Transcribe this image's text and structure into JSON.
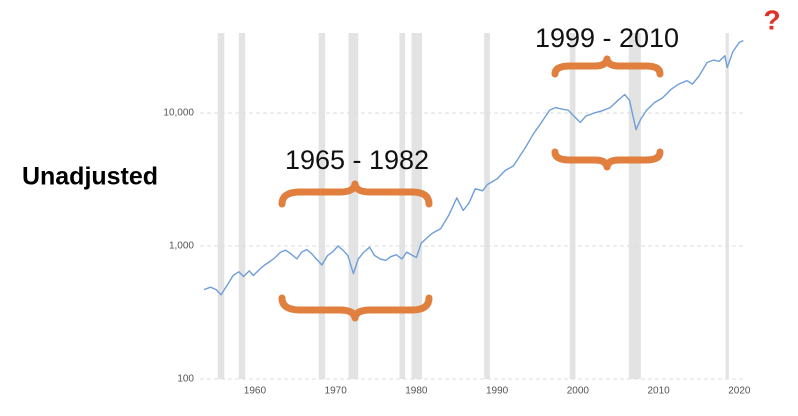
{
  "chart_data": {
    "type": "line",
    "side_label": "Unadjusted",
    "marker": "?",
    "annotations": [
      "1965 - 1982",
      "1999 - 2010"
    ],
    "log_scale": true,
    "grid": true,
    "xlim": [
      1953.2,
      2020.7
    ],
    "xticks": [
      1960,
      1970,
      1980,
      1990,
      2000,
      2010,
      2020
    ],
    "ylim": [
      100,
      40000
    ],
    "yticks": [
      100,
      {
        "value": 1000,
        "label": "1,000"
      },
      {
        "value": 10000,
        "label": "10,000"
      }
    ],
    "shaded_periods": [
      [
        1955.4,
        1956.2
      ],
      [
        1958.0,
        1958.8
      ],
      [
        1967.9,
        1968.7
      ],
      [
        1971.6,
        1972.8
      ],
      [
        1977.9,
        1978.6
      ],
      [
        1979.4,
        1980.7
      ],
      [
        1988.4,
        1989.1
      ],
      [
        1999.0,
        1999.7
      ],
      [
        2006.3,
        2007.8
      ],
      [
        2018.3,
        2018.7
      ]
    ],
    "series": [
      {
        "color": "#6f9fd8",
        "x": [
          1953.7,
          1954.5,
          1955.2,
          1955.8,
          1956.5,
          1957.3,
          1958,
          1958.6,
          1959.3,
          1959.8,
          1960.5,
          1961.2,
          1961.8,
          1962.5,
          1963.2,
          1963.8,
          1964.5,
          1965.2,
          1965.8,
          1966.4,
          1967,
          1967.6,
          1968.3,
          1969,
          1969.6,
          1970.3,
          1970.9,
          1971.5,
          1972.2,
          1972.8,
          1973.5,
          1974.2,
          1974.8,
          1975.5,
          1976.2,
          1976.8,
          1977.5,
          1978.2,
          1978.8,
          1979.5,
          1980,
          1980.6,
          1981.3,
          1982,
          1983,
          1984,
          1985,
          1985.8,
          1986.5,
          1987.3,
          1988.2,
          1988.8,
          1990,
          1991,
          1992,
          1993.5,
          1994.5,
          1995.5,
          1996.5,
          1997.2,
          1998,
          1998.8,
          1999.5,
          2000.3,
          2001,
          2002,
          2003,
          2004,
          2005,
          2005.8,
          2006.4,
          2007.2,
          2007.8,
          2008.5,
          2009.5,
          2010.5,
          2011.5,
          2012.5,
          2013.5,
          2014.2,
          2015,
          2016,
          2016.8,
          2017.5,
          2018.2,
          2018.5,
          2019.2,
          2020,
          2020.5
        ],
        "values": [
          470,
          490,
          470,
          430,
          500,
          600,
          640,
          590,
          650,
          600,
          660,
          720,
          760,
          820,
          900,
          930,
          870,
          800,
          900,
          940,
          880,
          800,
          720,
          850,
          900,
          1000,
          930,
          850,
          620,
          800,
          900,
          980,
          850,
          800,
          780,
          830,
          860,
          800,
          900,
          850,
          820,
          1050,
          1150,
          1250,
          1350,
          1700,
          2300,
          1850,
          2100,
          2700,
          2600,
          2900,
          3200,
          3700,
          4000,
          5500,
          7000,
          8500,
          10500,
          11000,
          10700,
          10500,
          9500,
          8500,
          9500,
          10000,
          10400,
          11000,
          12500,
          13800,
          12500,
          7500,
          9000,
          10500,
          12000,
          13000,
          15000,
          16500,
          17500,
          16500,
          19000,
          24000,
          25000,
          24500,
          27000,
          22000,
          29000,
          34000,
          35000
        ]
      }
    ]
  }
}
